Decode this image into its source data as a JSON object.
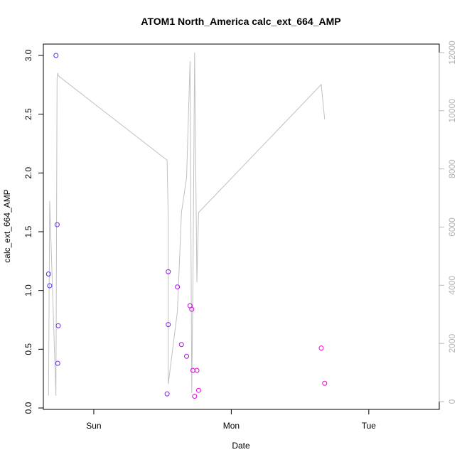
{
  "chart_data": {
    "type": "scatter",
    "title": "ATOM1 North_America calc_ext_664_AMP",
    "xlabel": "Date",
    "ylabel": "calc_ext_664_AMP",
    "x_tick_labels": [
      "Sun",
      "Mon",
      "Tue"
    ],
    "x_tick_hours": [
      0,
      24,
      48
    ],
    "xlim_hours": [
      -8.8,
      60.3
    ],
    "ylim": [
      0,
      3.0
    ],
    "y_ticks": [
      0.0,
      0.5,
      1.0,
      1.5,
      2.0,
      2.5,
      3.0
    ],
    "y_tick_labels": [
      "0.0",
      "0.5",
      "1.0",
      "1.5",
      "2.0",
      "2.5",
      "3.0"
    ],
    "y2lim": [
      0,
      12000
    ],
    "y2_ticks": [
      0,
      2000,
      4000,
      6000,
      8000,
      10000,
      12000
    ],
    "y2_tick_labels": [
      "0",
      "2000",
      "4000",
      "6000",
      "8000",
      "10000",
      "12000"
    ],
    "colors": {
      "line": "#c0c0c0",
      "point_start": "#4b2cf0",
      "point_end": "#ff00d0",
      "axis_right": "#b5b5b5"
    },
    "series": [
      {
        "role": "points",
        "axis": "left",
        "x_hours": [
          -7.9,
          -7.7,
          -6.6,
          -6.4,
          -6.3,
          -6.2,
          12.8,
          13.0,
          13.0,
          14.6,
          15.3,
          16.2,
          16.8,
          17.1,
          17.3,
          17.6,
          18.0,
          18.3,
          39.7,
          40.3
        ],
        "y": [
          1.14,
          1.04,
          3.0,
          1.56,
          0.38,
          0.7,
          0.12,
          0.71,
          1.16,
          1.03,
          0.54,
          0.44,
          0.87,
          0.84,
          0.32,
          0.1,
          0.32,
          0.15,
          0.51,
          0.21
        ]
      },
      {
        "role": "line",
        "axis": "right",
        "x_hours": [
          -7.9,
          -7.7,
          -6.6,
          -6.4,
          -6.3,
          -6.2,
          12.8,
          13.0,
          13.0,
          14.6,
          15.3,
          16.2,
          16.8,
          17.1,
          17.3,
          17.6,
          18.0,
          18.3,
          39.7,
          40.3
        ],
        "y": [
          200,
          6900,
          200,
          11100,
          11300,
          11200,
          8300,
          6300,
          600,
          3100,
          6500,
          7700,
          11700,
          300,
          4000,
          12000,
          4100,
          6500,
          10900,
          9700
        ]
      }
    ]
  }
}
